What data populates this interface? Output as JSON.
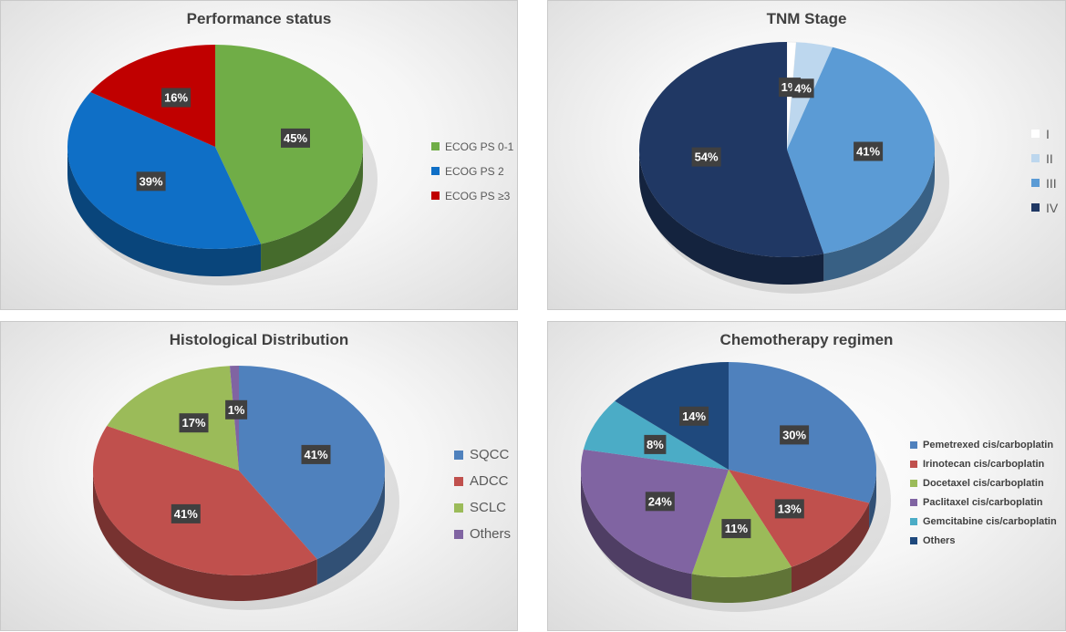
{
  "chart_data": [
    {
      "type": "pie",
      "title": "Performance status",
      "labels": [
        "ECOG PS 0-1",
        "ECOG PS 2",
        "ECOG PS ≥3"
      ],
      "values": [
        45,
        39,
        16
      ],
      "value_labels": [
        "45%",
        "39%",
        "16%"
      ],
      "colors": [
        "#70ad47",
        "#0f6fc6",
        "#c00000"
      ],
      "legend": "right"
    },
    {
      "type": "pie",
      "title": "TNM Stage",
      "labels": [
        "I",
        "II",
        "III",
        "IV"
      ],
      "values": [
        1,
        4,
        41,
        54
      ],
      "value_labels": [
        "1%",
        "4%",
        "41%",
        "54%"
      ],
      "colors": [
        "#ffffff",
        "#bdd7ee",
        "#5b9bd5",
        "#203864"
      ],
      "legend": "right"
    },
    {
      "type": "pie",
      "title": "Histological Distribution",
      "labels": [
        "SQCC",
        "ADCC",
        "SCLC",
        "Others"
      ],
      "values": [
        41,
        41,
        17,
        1
      ],
      "value_labels": [
        "41%",
        "41%",
        "17%",
        "1%"
      ],
      "colors": [
        "#4f81bd",
        "#c0504d",
        "#9bbb59",
        "#8064a2"
      ],
      "legend": "right"
    },
    {
      "type": "pie",
      "title": "Chemotherapy regimen",
      "labels": [
        "Pemetrexed cis/carboplatin",
        "Irinotecan cis/carboplatin",
        "Docetaxel cis/carboplatin",
        "Paclitaxel cis/carboplatin",
        "Gemcitabine cis/carboplatin",
        "Others"
      ],
      "values": [
        30,
        13,
        11,
        24,
        8,
        14
      ],
      "value_labels": [
        "30%",
        "13%",
        "11%",
        "24%",
        "8%",
        "14%"
      ],
      "colors": [
        "#4f81bd",
        "#c0504d",
        "#9bbb59",
        "#8064a2",
        "#4bacc6",
        "#1f497d"
      ],
      "legend": "right"
    }
  ]
}
